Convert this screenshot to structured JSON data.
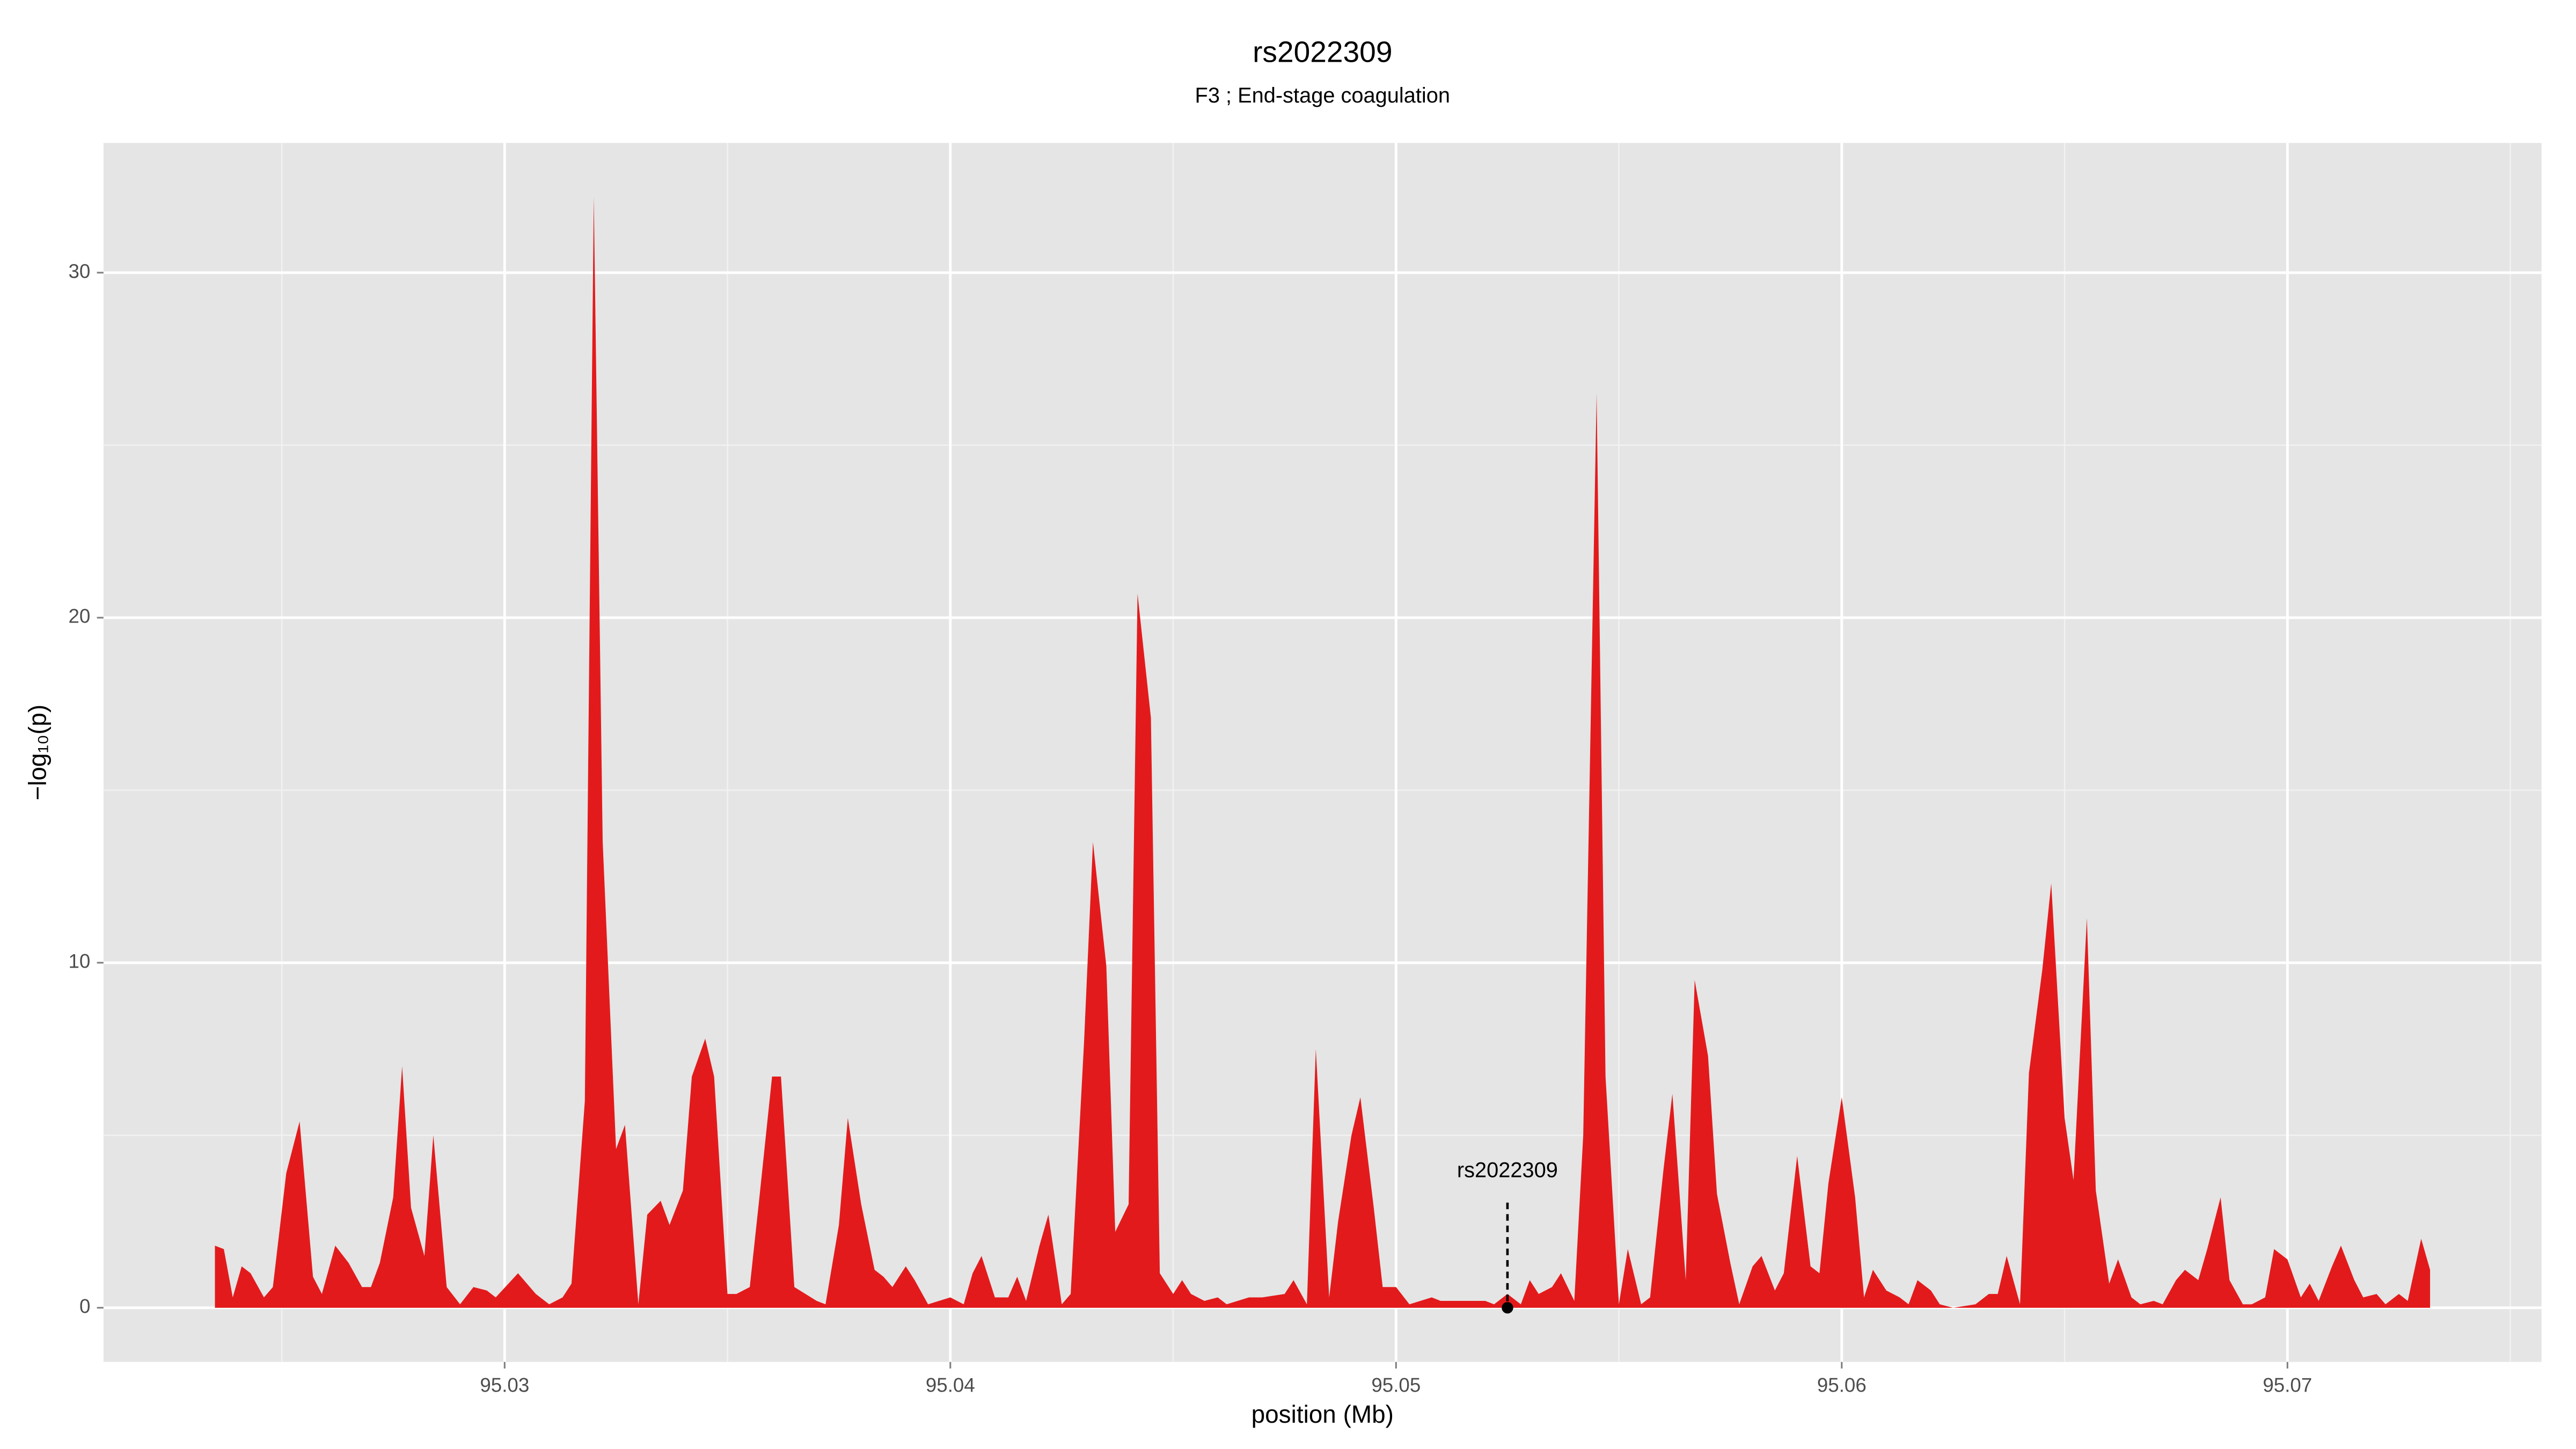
{
  "chart_data": {
    "type": "area",
    "title": "rs2022309",
    "subtitle": "F3 ; End-stage coagulation",
    "x_label": "position (Mb)",
    "y_label": "−log₁₀(p)",
    "color": "#e31a1c",
    "grid": true,
    "xlim": [
      95.021,
      95.0757
    ],
    "ylim": [
      -1.57,
      33.76
    ],
    "xticks": [
      95.03,
      95.04,
      95.05,
      95.06,
      95.07
    ],
    "yticks": [
      0,
      10,
      20,
      30
    ],
    "annotation": {
      "text": "rs2022309",
      "x": 95.0525,
      "y": 0
    },
    "x": [
      95.0235,
      95.0237,
      95.0239,
      95.0241,
      95.0243,
      95.0246,
      95.0248,
      95.0251,
      95.0254,
      95.0257,
      95.0259,
      95.0262,
      95.0265,
      95.0268,
      95.027,
      95.0272,
      95.0275,
      95.0277,
      95.0279,
      95.0282,
      95.0284,
      95.0287,
      95.029,
      95.0293,
      95.0296,
      95.0298,
      95.0303,
      95.0307,
      95.031,
      95.0313,
      95.0315,
      95.0318,
      95.032,
      95.0322,
      95.0325,
      95.0327,
      95.033,
      95.0332,
      95.0335,
      95.0337,
      95.034,
      95.0342,
      95.0345,
      95.0347,
      95.035,
      95.0352,
      95.0355,
      95.0357,
      95.036,
      95.0362,
      95.0365,
      95.037,
      95.0372,
      95.0375,
      95.0377,
      95.038,
      95.0383,
      95.0385,
      95.0387,
      95.039,
      95.0392,
      95.0395,
      95.04,
      95.0403,
      95.0405,
      95.0407,
      95.041,
      95.0413,
      95.0415,
      95.0417,
      95.042,
      95.0422,
      95.0425,
      95.0427,
      95.043,
      95.0432,
      95.0435,
      95.0437,
      95.044,
      95.0442,
      95.0445,
      95.0447,
      95.045,
      95.0452,
      95.0454,
      95.0457,
      95.046,
      95.0462,
      95.0467,
      95.047,
      95.0475,
      95.0477,
      95.048,
      95.0482,
      95.0485,
      95.0487,
      95.049,
      95.0492,
      95.0495,
      95.0497,
      95.05,
      95.0503,
      95.0508,
      95.051,
      95.0515,
      95.052,
      95.0522,
      95.0525,
      95.0528,
      95.053,
      95.0532,
      95.0535,
      95.0537,
      95.054,
      95.0542,
      95.0545,
      95.0547,
      95.055,
      95.0552,
      95.0555,
      95.0557,
      95.056,
      95.0562,
      95.0565,
      95.0567,
      95.057,
      95.0572,
      95.0575,
      95.0577,
      95.058,
      95.0582,
      95.0585,
      95.0587,
      95.059,
      95.0593,
      95.0595,
      95.0597,
      95.06,
      95.0603,
      95.0605,
      95.0607,
      95.061,
      95.0613,
      95.0615,
      95.0617,
      95.062,
      95.0622,
      95.0625,
      95.063,
      95.0633,
      95.0635,
      95.0637,
      95.064,
      95.0642,
      95.0645,
      95.0647,
      95.065,
      95.0652,
      95.0655,
      95.0657,
      95.066,
      95.0662,
      95.0665,
      95.0667,
      95.067,
      95.0672,
      95.0675,
      95.0677,
      95.068,
      95.0682,
      95.0685,
      95.0687,
      95.069,
      95.0692,
      95.0695,
      95.0697,
      95.07,
      95.0703,
      95.0705,
      95.0707,
      95.071,
      95.0712,
      95.0715,
      95.0717,
      95.072,
      95.0722,
      95.0725,
      95.0727,
      95.073,
      95.0732
    ],
    "values": [
      1.8,
      1.7,
      0.3,
      1.2,
      1.0,
      0.3,
      0.6,
      3.9,
      5.4,
      0.9,
      0.4,
      1.8,
      1.3,
      0.6,
      0.6,
      1.3,
      3.2,
      7.0,
      2.9,
      1.5,
      5.0,
      0.6,
      0.1,
      0.6,
      0.5,
      0.3,
      1.0,
      0.4,
      0.1,
      0.3,
      0.7,
      6.0,
      32.2,
      13.5,
      4.6,
      5.3,
      0.1,
      2.7,
      3.1,
      2.4,
      3.4,
      6.7,
      7.8,
      6.7,
      0.4,
      0.4,
      0.6,
      3.0,
      6.7,
      6.7,
      0.6,
      0.2,
      0.1,
      2.4,
      5.5,
      3.0,
      1.1,
      0.9,
      0.6,
      1.2,
      0.8,
      0.1,
      0.3,
      0.1,
      1.0,
      1.5,
      0.3,
      0.3,
      0.9,
      0.2,
      1.8,
      2.7,
      0.1,
      0.4,
      7.7,
      13.5,
      9.9,
      2.2,
      3.0,
      20.7,
      17.1,
      1.0,
      0.4,
      0.8,
      0.4,
      0.2,
      0.3,
      0.1,
      0.3,
      0.3,
      0.4,
      0.8,
      0.1,
      7.5,
      0.3,
      2.5,
      5.0,
      6.1,
      2.9,
      0.6,
      0.6,
      0.1,
      0.3,
      0.2,
      0.2,
      0.2,
      0.1,
      0.4,
      0.1,
      0.8,
      0.4,
      0.6,
      1.0,
      0.2,
      5.0,
      26.5,
      6.7,
      0.1,
      1.7,
      0.1,
      0.3,
      4.0,
      6.2,
      0.8,
      9.5,
      7.3,
      3.3,
      1.3,
      0.1,
      1.2,
      1.5,
      0.5,
      1.0,
      4.4,
      1.2,
      1.0,
      3.6,
      6.1,
      3.2,
      0.3,
      1.1,
      0.5,
      0.3,
      0.1,
      0.8,
      0.5,
      0.1,
      0.0,
      0.1,
      0.4,
      0.4,
      1.5,
      0.1,
      6.8,
      9.8,
      12.3,
      5.5,
      3.7,
      11.3,
      3.4,
      0.7,
      1.4,
      0.3,
      0.1,
      0.2,
      0.1,
      0.8,
      1.1,
      0.8,
      1.7,
      3.2,
      0.8,
      0.1,
      0.1,
      0.3,
      1.7,
      1.4,
      0.3,
      0.7,
      0.2,
      1.2,
      1.8,
      0.8,
      0.3,
      0.4,
      0.1,
      0.4,
      0.2,
      2.0,
      1.1
    ]
  }
}
